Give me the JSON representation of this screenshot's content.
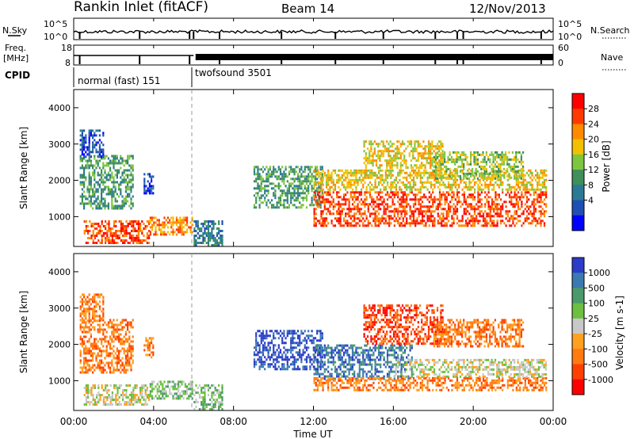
{
  "header": {
    "station": "Rankin Inlet (fitACF)",
    "beam": "Beam 14",
    "date": "12/Nov/2013"
  },
  "noise_panel": {
    "left_label": "N.Sky",
    "right_label": "N.Search",
    "left_ticks": [
      "10^5",
      "10^0"
    ],
    "right_ticks": [
      "10^5",
      "10^0"
    ]
  },
  "freq_panel": {
    "left_label_1": "Freq.",
    "left_label_2": "[MHz]",
    "right_label": "Nave",
    "left_ticks": [
      "18",
      "8"
    ],
    "right_ticks": [
      "60",
      "0"
    ]
  },
  "cpid_panel": {
    "label": "CPID",
    "modes": [
      {
        "name": "normal (fast) 151",
        "start_hour": 0.0,
        "end_hour": 6.0
      },
      {
        "name": "twofsound 3501",
        "start_hour": 6.0,
        "end_hour": 24.0
      }
    ]
  },
  "x_axis": {
    "label": "Time UT",
    "tick_labels": [
      "00:00",
      "04:00",
      "08:00",
      "12:00",
      "16:00",
      "20:00",
      "00:00"
    ],
    "tick_hours": [
      0,
      4,
      8,
      12,
      16,
      20,
      24
    ],
    "range_hours": [
      0,
      24
    ]
  },
  "chart_data": [
    {
      "type": "heatmap",
      "name": "power",
      "ylabel": "Slant Range [km]",
      "ylim": [
        180,
        4500
      ],
      "yticks": [
        1000,
        2000,
        3000,
        4000
      ],
      "xlim": [
        0,
        24
      ],
      "colorbar": {
        "label": "Power [dB]",
        "ticks": [
          "28",
          "24",
          "20",
          "16",
          "12",
          "8",
          "4"
        ],
        "colors": [
          "#ff0000",
          "#ff3a00",
          "#ff8a00",
          "#f2c000",
          "#7fc640",
          "#3f8f5a",
          "#2a7a96",
          "#1f4fb4",
          "#0000ff"
        ]
      },
      "echo_regions": [
        {
          "t0": 0.3,
          "t1": 3.0,
          "r0": 1200,
          "r1": 2700,
          "level": 5
        },
        {
          "t0": 0.3,
          "t1": 1.5,
          "r0": 2600,
          "r1": 3400,
          "level": 7
        },
        {
          "t0": 0.5,
          "t1": 3.8,
          "r0": 250,
          "r1": 900,
          "level": 1
        },
        {
          "t0": 3.8,
          "t1": 6.0,
          "r0": 500,
          "r1": 1000,
          "level": 2
        },
        {
          "t0": 3.5,
          "t1": 4.0,
          "r0": 1600,
          "r1": 2200,
          "level": 7
        },
        {
          "t0": 6.0,
          "t1": 7.5,
          "r0": 200,
          "r1": 900,
          "level": 6
        },
        {
          "t0": 9.0,
          "t1": 12.5,
          "r0": 1200,
          "r1": 2400,
          "level": 5
        },
        {
          "t0": 12.0,
          "t1": 23.7,
          "r0": 700,
          "r1": 1700,
          "level": 1
        },
        {
          "t0": 12.0,
          "t1": 23.7,
          "r0": 1700,
          "r1": 2300,
          "level": 3
        },
        {
          "t0": 14.5,
          "t1": 18.5,
          "r0": 2300,
          "r1": 3100,
          "level": 3
        },
        {
          "t0": 18.0,
          "t1": 22.5,
          "r0": 2000,
          "r1": 2800,
          "level": 4
        }
      ]
    },
    {
      "type": "heatmap",
      "name": "velocity",
      "ylabel": "Slant Range [km]",
      "ylim": [
        180,
        4500
      ],
      "yticks": [
        1000,
        2000,
        3000,
        4000
      ],
      "xlim": [
        0,
        24
      ],
      "colorbar": {
        "label": "Velocity [m s-1]",
        "ticks": [
          "1000",
          "500",
          "100",
          "25",
          "-25",
          "-100",
          "-500",
          "-1000"
        ],
        "colors": [
          "#2a3cc8",
          "#3a7ab0",
          "#4a9a6a",
          "#6cc040",
          "#c8c8c8",
          "#ffa020",
          "#ff7a10",
          "#ff4000",
          "#ff0000"
        ]
      },
      "echo_regions": [
        {
          "t0": 0.3,
          "t1": 3.0,
          "r0": 1200,
          "r1": 2700,
          "level": 6
        },
        {
          "t0": 0.3,
          "t1": 1.5,
          "r0": 2600,
          "r1": 3400,
          "level": 6
        },
        {
          "t0": 0.5,
          "t1": 3.8,
          "r0": 300,
          "r1": 900,
          "level": 4
        },
        {
          "t0": 3.8,
          "t1": 6.0,
          "r0": 500,
          "r1": 1000,
          "level": 3
        },
        {
          "t0": 3.5,
          "t1": 4.0,
          "r0": 1600,
          "r1": 2200,
          "level": 6
        },
        {
          "t0": 6.0,
          "t1": 7.5,
          "r0": 200,
          "r1": 900,
          "level": 3
        },
        {
          "t0": 9.0,
          "t1": 12.5,
          "r0": 1300,
          "r1": 2400,
          "level": 0
        },
        {
          "t0": 12.0,
          "t1": 17.0,
          "r0": 1000,
          "r1": 2000,
          "level": 1
        },
        {
          "t0": 12.0,
          "t1": 23.7,
          "r0": 700,
          "r1": 1100,
          "level": 6
        },
        {
          "t0": 16.0,
          "t1": 23.7,
          "r0": 1100,
          "r1": 1600,
          "level": 4
        },
        {
          "t0": 14.5,
          "t1": 18.5,
          "r0": 2000,
          "r1": 3100,
          "level": 7
        },
        {
          "t0": 18.0,
          "t1": 22.5,
          "r0": 1900,
          "r1": 2700,
          "level": 6
        }
      ]
    }
  ]
}
